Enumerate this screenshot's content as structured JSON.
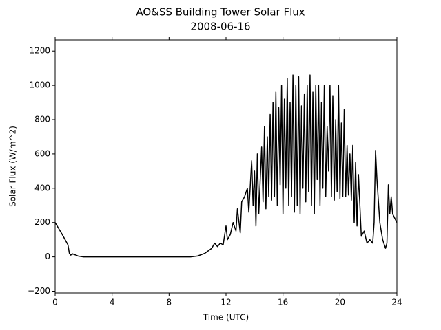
{
  "chart_data": {
    "type": "line",
    "title": "AO&SS Building Tower Solar Flux",
    "subtitle": "2008-06-16",
    "x_label": "Time (UTC)",
    "y_label": "Solar Flux (W/m^2)",
    "color": "#000000",
    "xlim": [
      0,
      24
    ],
    "ylim": [
      -210,
      1265
    ],
    "xticks": [
      0,
      4,
      8,
      12,
      16,
      20,
      24
    ],
    "yticks": [
      {
        "value": -200,
        "label": "−200"
      },
      0,
      200,
      400,
      600,
      800,
      1000,
      1200
    ],
    "x": [
      0,
      0.5,
      0.9,
      1.0,
      1.1,
      1.2,
      1.4,
      1.6,
      2.0,
      2.5,
      9.5,
      10,
      10.5,
      11,
      11.2,
      11.4,
      11.6,
      11.8,
      12.0,
      12.1,
      12.3,
      12.5,
      12.7,
      12.8,
      13.0,
      13.1,
      13.3,
      13.5,
      13.6,
      13.8,
      13.9,
      14.0,
      14.1,
      14.2,
      14.3,
      14.5,
      14.6,
      14.7,
      14.8,
      14.9,
      15.0,
      15.1,
      15.2,
      15.3,
      15.4,
      15.5,
      15.6,
      15.7,
      15.8,
      15.9,
      16.0,
      16.1,
      16.2,
      16.3,
      16.4,
      16.5,
      16.6,
      16.7,
      16.8,
      16.9,
      17.0,
      17.1,
      17.2,
      17.3,
      17.4,
      17.5,
      17.6,
      17.7,
      17.8,
      17.9,
      18.0,
      18.1,
      18.2,
      18.3,
      18.4,
      18.5,
      18.6,
      18.7,
      18.8,
      18.9,
      19.0,
      19.1,
      19.2,
      19.3,
      19.4,
      19.5,
      19.6,
      19.7,
      19.8,
      19.9,
      20.0,
      20.1,
      20.2,
      20.3,
      20.4,
      20.5,
      20.6,
      20.7,
      20.8,
      20.9,
      21.0,
      21.1,
      21.2,
      21.3,
      21.5,
      21.7,
      21.9,
      22.1,
      22.3,
      22.4,
      22.5,
      22.6,
      22.8,
      23.0,
      23.2,
      23.3,
      23.4,
      23.5,
      23.6,
      23.7,
      24.0
    ],
    "values": [
      200,
      130,
      70,
      20,
      10,
      18,
      12,
      5,
      0,
      0,
      0,
      5,
      20,
      50,
      80,
      60,
      80,
      70,
      180,
      100,
      130,
      200,
      150,
      280,
      140,
      320,
      350,
      400,
      260,
      560,
      300,
      500,
      180,
      600,
      250,
      640,
      320,
      760,
      280,
      700,
      350,
      830,
      330,
      900,
      350,
      960,
      300,
      870,
      420,
      1000,
      250,
      920,
      400,
      1040,
      300,
      900,
      350,
      1060,
      260,
      1000,
      300,
      1050,
      250,
      880,
      400,
      950,
      320,
      1000,
      380,
      1060,
      300,
      960,
      250,
      1000,
      450,
      1000,
      300,
      900,
      400,
      1000,
      350,
      760,
      500,
      1000,
      350,
      940,
      330,
      800,
      380,
      1000,
      340,
      780,
      350,
      860,
      350,
      650,
      360,
      600,
      330,
      650,
      200,
      550,
      180,
      480,
      120,
      150,
      80,
      100,
      80,
      200,
      620,
      450,
      200,
      100,
      50,
      80,
      420,
      250,
      350,
      250,
      200
    ]
  }
}
